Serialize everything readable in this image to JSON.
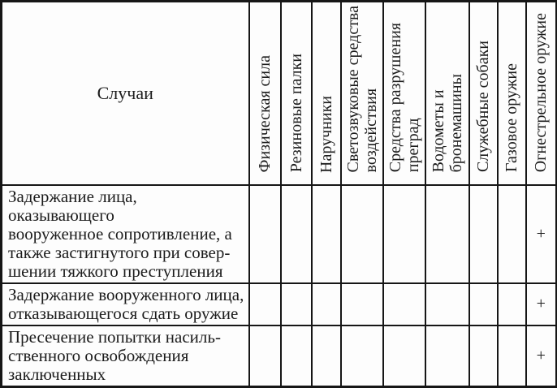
{
  "table": {
    "corner_label": "Случаи",
    "columns": [
      {
        "label": "Физическая сила"
      },
      {
        "label": "Резиновые палки"
      },
      {
        "label": "Наручники"
      },
      {
        "label": "Светозвуковые средства\nвоздействия"
      },
      {
        "label": "Средства разрушения\nпреград"
      },
      {
        "label": "Водометы и\nбронемашины"
      },
      {
        "label": "Служебные собаки"
      },
      {
        "label": "Газовое оружие"
      },
      {
        "label": "Огнестрельное оружие"
      }
    ],
    "rows": [
      {
        "case": "Задержание лица, оказывающего\nвооруженное сопротивление, а\nтакже застигнутого при совер-\nшении тяжкого преступления",
        "values": [
          "",
          "",
          "",
          "",
          "",
          "",
          "",
          "",
          "+"
        ]
      },
      {
        "case": "Задержание вооруженного лица,\nотказывающегося сдать оружие",
        "values": [
          "",
          "",
          "",
          "",
          "",
          "",
          "",
          "",
          "+"
        ]
      },
      {
        "case": "Пресечение попытки насиль-\nственного освобождения\nзаключенных",
        "values": [
          "",
          "",
          "",
          "",
          "",
          "",
          "",
          "",
          "+"
        ]
      }
    ],
    "colors": {
      "border": "#161616",
      "text": "#1c1c1c",
      "background": "#fdfdfd"
    }
  }
}
